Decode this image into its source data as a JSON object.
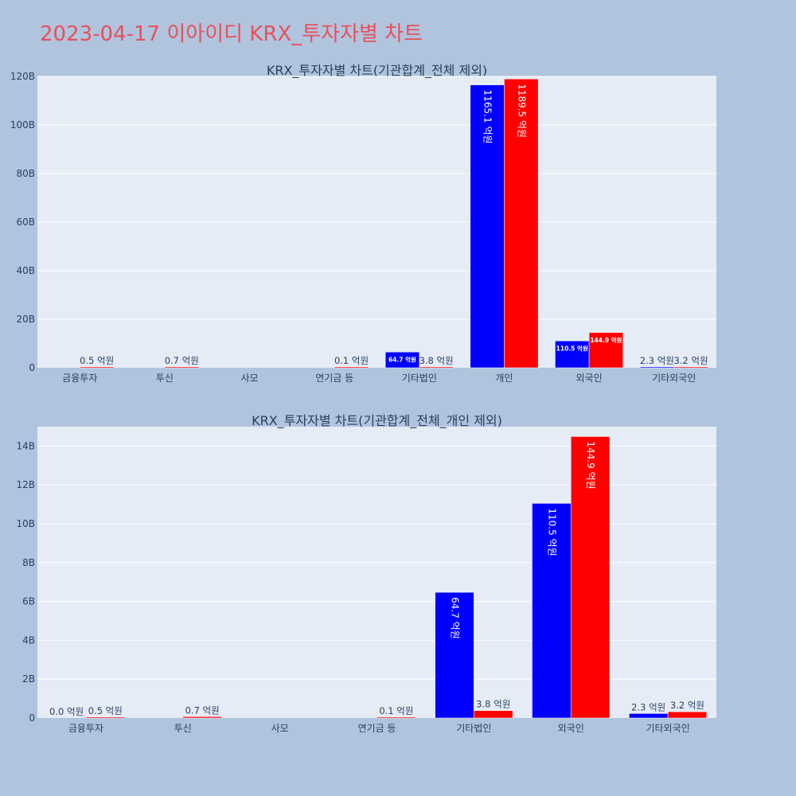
{
  "page_title": "2023-04-17 이아이디 KRX_투자자별 차트",
  "colors": {
    "background": "#b0c4de",
    "plot_bg": "#e5ecf6",
    "title": "#e8505b",
    "buy": "#0000ff",
    "sell": "#ff0000"
  },
  "chart_data": [
    {
      "type": "bar",
      "title": "KRX_투자자별 차트(기관합계_전체 제외)",
      "categories": [
        "금융투자",
        "투신",
        "사모",
        "연기금 등",
        "기타법인",
        "개인",
        "외국인",
        "기타외국인"
      ],
      "ylim": [
        0,
        120000000000
      ],
      "yticks": [
        0,
        20000000000,
        40000000000,
        60000000000,
        80000000000,
        100000000000,
        120000000000
      ],
      "ytick_labels": [
        "0",
        "20B",
        "40B",
        "60B",
        "80B",
        "100B",
        "120B"
      ],
      "grid": true,
      "series": [
        {
          "color": "#0000ff",
          "values": [
            null,
            null,
            null,
            null,
            6470000000,
            116510000000,
            11050000000,
            230000000
          ],
          "labels": [
            "",
            "",
            "",
            "",
            "64.7 억원",
            "1165.1 억원",
            "110.5 억원",
            "2.3 억원"
          ]
        },
        {
          "color": "#ff0000",
          "values": [
            50000000,
            70000000,
            null,
            10000000,
            380000000,
            118950000000,
            14490000000,
            320000000
          ],
          "labels": [
            "0.5 억원",
            "0.7 억원",
            "",
            "0.1 억원",
            "3.8 억원",
            "1189.5 억원",
            "144.9 억원",
            "3.2 억원"
          ]
        }
      ]
    },
    {
      "type": "bar",
      "title": "KRX_투자자별 차트(기관합계_전체_개인 제외)",
      "categories": [
        "금융투자",
        "투신",
        "사모",
        "연기금 등",
        "기타법인",
        "외국인",
        "기타외국인"
      ],
      "ylim": [
        0,
        15000000000
      ],
      "yticks": [
        0,
        2000000000,
        4000000000,
        6000000000,
        8000000000,
        10000000000,
        12000000000,
        14000000000
      ],
      "ytick_labels": [
        "0",
        "2B",
        "4B",
        "6B",
        "8B",
        "10B",
        "12B",
        "14B"
      ],
      "grid": true,
      "series": [
        {
          "color": "#0000ff",
          "values": [
            0,
            null,
            null,
            null,
            6470000000,
            11050000000,
            230000000
          ],
          "labels": [
            "0.0 억원",
            "",
            "",
            "",
            "64.7 억원",
            "110.5 억원",
            "2.3 억원"
          ]
        },
        {
          "color": "#ff0000",
          "values": [
            50000000,
            70000000,
            null,
            10000000,
            380000000,
            14490000000,
            320000000
          ],
          "labels": [
            "0.5 억원",
            "0.7 억원",
            "",
            "0.1 억원",
            "3.8 억원",
            "144.9 억원",
            "3.2 억원"
          ]
        }
      ]
    }
  ]
}
